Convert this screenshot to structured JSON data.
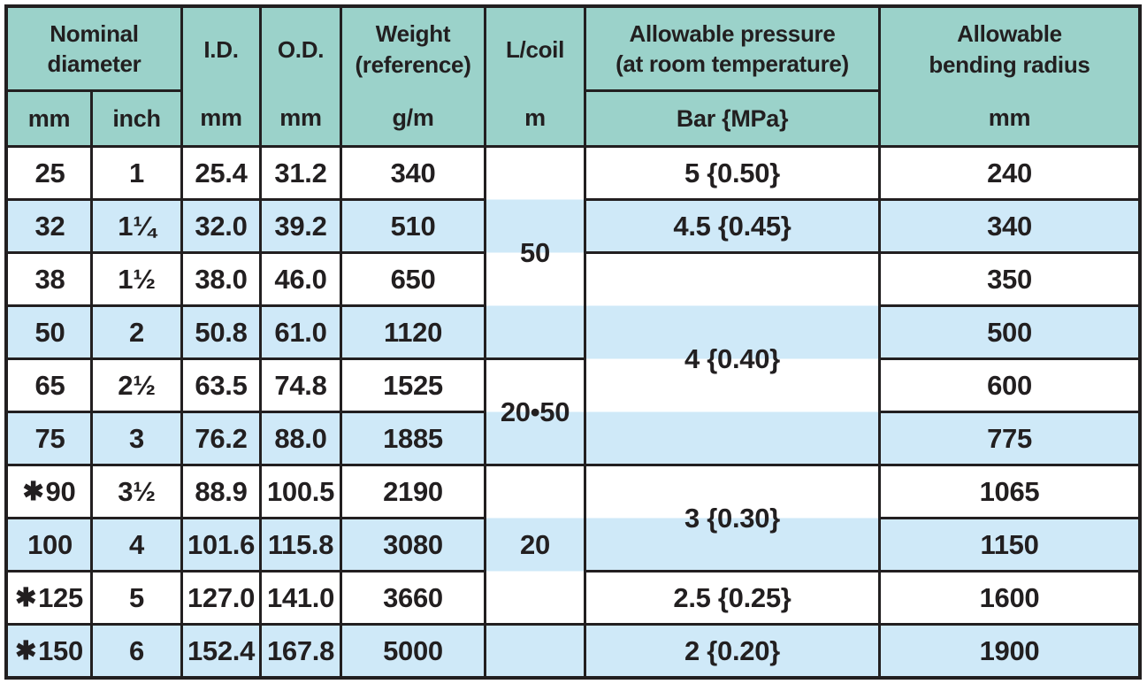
{
  "colors": {
    "header_bg": "#9bd2ca",
    "stripe_bg": "#cfe9f8",
    "row_bg": "#ffffff",
    "border": "#221f20",
    "text": "#221f20"
  },
  "header": {
    "nominal": {
      "line1": "Nominal",
      "line2": "diameter",
      "sub_mm": "mm",
      "sub_inch": "inch"
    },
    "id": {
      "label": "I.D.",
      "unit": "mm"
    },
    "od": {
      "label": "O.D.",
      "unit": "mm"
    },
    "weight": {
      "line1": "Weight",
      "line2": "(reference)",
      "unit": "g/m"
    },
    "lcoil": {
      "label": "L/coil",
      "unit": "m"
    },
    "pressure": {
      "line1": "Allowable pressure",
      "line2": "(at room temperature)",
      "unit": "Bar {MPa}"
    },
    "bending": {
      "line1": "Allowable",
      "line2": "bending radius",
      "unit": "mm"
    }
  },
  "rows": [
    {
      "prefix": "",
      "mm": "25",
      "inch": "1",
      "id": "25.4",
      "od": "31.2",
      "weight": "340",
      "bending": "240"
    },
    {
      "prefix": "",
      "mm": "32",
      "inch": "1¼",
      "id": "32.0",
      "od": "39.2",
      "weight": "510",
      "bending": "340"
    },
    {
      "prefix": "",
      "mm": "38",
      "inch": "1½",
      "id": "38.0",
      "od": "46.0",
      "weight": "650",
      "bending": "350"
    },
    {
      "prefix": "",
      "mm": "50",
      "inch": "2",
      "id": "50.8",
      "od": "61.0",
      "weight": "1120",
      "bending": "500"
    },
    {
      "prefix": "",
      "mm": "65",
      "inch": "2½",
      "id": "63.5",
      "od": "74.8",
      "weight": "1525",
      "bending": "600"
    },
    {
      "prefix": "",
      "mm": "75",
      "inch": "3",
      "id": "76.2",
      "od": "88.0",
      "weight": "1885",
      "bending": "775"
    },
    {
      "prefix": "✱",
      "mm": "90",
      "inch": "3½",
      "id": "88.9",
      "od": "100.5",
      "weight": "2190",
      "bending": "1065"
    },
    {
      "prefix": "",
      "mm": "100",
      "inch": "4",
      "id": "101.6",
      "od": "115.8",
      "weight": "3080",
      "bending": "1150"
    },
    {
      "prefix": "✱",
      "mm": "125",
      "inch": "5",
      "id": "127.0",
      "od": "141.0",
      "weight": "3660",
      "bending": "1600"
    },
    {
      "prefix": "✱",
      "mm": "150",
      "inch": "6",
      "id": "152.4",
      "od": "167.8",
      "weight": "5000",
      "bending": "1900"
    }
  ],
  "lcoil": {
    "cells": [
      {
        "value": "50",
        "rows": "1-4"
      },
      {
        "value": "20•50",
        "rows": "5-6"
      },
      {
        "value": "20",
        "rows": "7-9"
      },
      {
        "value": "",
        "rows": "10"
      }
    ]
  },
  "pressure": {
    "cells": [
      {
        "value": "5 {0.50}",
        "rows": "1"
      },
      {
        "value": "4.5 {0.45}",
        "rows": "2"
      },
      {
        "value": "4 {0.40}",
        "rows": "3-6"
      },
      {
        "value": "3 {0.30}",
        "rows": "7-8"
      },
      {
        "value": "2.5 {0.25}",
        "rows": "9"
      },
      {
        "value": "2 {0.20}",
        "rows": "10"
      }
    ]
  }
}
